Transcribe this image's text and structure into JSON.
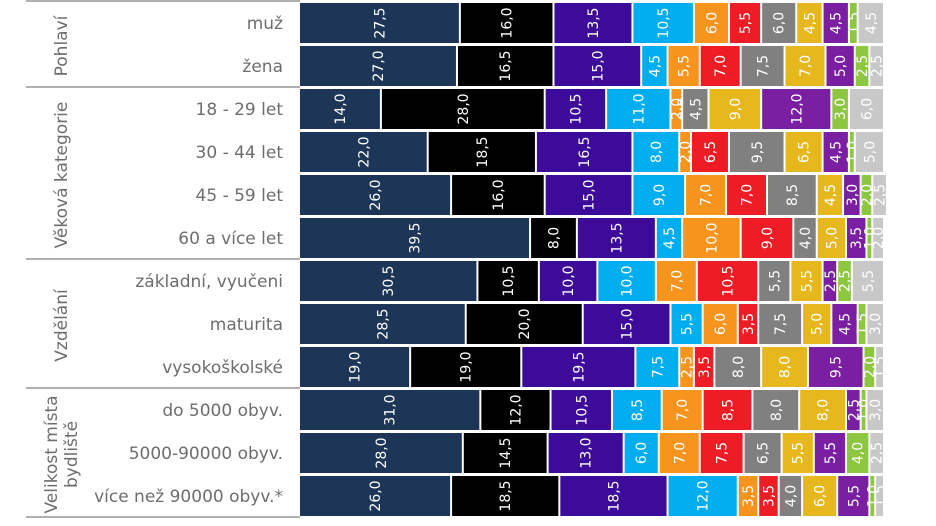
{
  "chart_data": {
    "type": "bar",
    "orientation": "horizontal",
    "stacked": true,
    "series_colors": [
      "#1d3556",
      "#000000",
      "#3d0b9a",
      "#00aeef",
      "#f7941d",
      "#ee1c25",
      "#808080",
      "#e6b81e",
      "#7a1fa2",
      "#8dc63f",
      "#c8c8c8"
    ],
    "groups": [
      {
        "label": "Pohlaví",
        "rows": [
          {
            "label": "muž",
            "values": [
              27.5,
              16.0,
              13.5,
              10.5,
              6.0,
              5.5,
              6.0,
              4.5,
              4.5,
              1.5,
              4.5
            ]
          },
          {
            "label": "žena",
            "values": [
              27.0,
              16.5,
              15.0,
              4.5,
              5.5,
              7.0,
              7.5,
              7.0,
              5.0,
              2.5,
              2.5
            ]
          }
        ]
      },
      {
        "label": "Věková kategorie",
        "rows": [
          {
            "label": "18 - 29 let",
            "values": [
              14.0,
              28.0,
              10.5,
              11.0,
              2.0,
              0.0,
              4.5,
              9.0,
              12.0,
              3.0,
              6.0
            ]
          },
          {
            "label": "30 - 44 let",
            "values": [
              22.0,
              18.5,
              16.5,
              8.0,
              2.0,
              6.5,
              9.5,
              6.5,
              4.5,
              1.0,
              5.0
            ]
          },
          {
            "label": "45 - 59 let",
            "values": [
              26.0,
              16.0,
              15.0,
              9.0,
              7.0,
              7.0,
              8.5,
              4.5,
              3.0,
              2.0,
              2.5
            ]
          },
          {
            "label": "60 a více let",
            "values": [
              39.5,
              8.0,
              13.5,
              4.5,
              10.0,
              9.0,
              4.0,
              5.0,
              3.5,
              1.0,
              2.0
            ]
          }
        ]
      },
      {
        "label": "Vzdělání",
        "rows": [
          {
            "label": "základní, vyučeni",
            "values": [
              30.5,
              10.5,
              10.0,
              10.0,
              7.0,
              10.5,
              5.5,
              5.5,
              2.5,
              2.5,
              5.5
            ]
          },
          {
            "label": "maturita",
            "values": [
              28.5,
              20.0,
              15.0,
              5.5,
              6.0,
              3.5,
              7.5,
              5.0,
              4.5,
              1.5,
              3.0
            ]
          },
          {
            "label": "vysokoškolské",
            "values": [
              19.0,
              19.0,
              19.5,
              7.5,
              2.5,
              3.5,
              8.0,
              8.0,
              9.5,
              2.0,
              1.5
            ]
          }
        ]
      },
      {
        "label": "Velikost místa bydliště",
        "label_lines": [
          "Velikost místa",
          "bydliště"
        ],
        "rows": [
          {
            "label": "do 5000 obyv.",
            "values": [
              31.0,
              12.0,
              10.5,
              8.5,
              7.0,
              8.5,
              8.0,
              8.0,
              2.5,
              1.0,
              3.0
            ]
          },
          {
            "label": "5000-90000 obyv.",
            "values": [
              28.0,
              14.5,
              13.0,
              6.0,
              7.0,
              7.5,
              6.5,
              5.5,
              5.5,
              4.0,
              2.5
            ]
          },
          {
            "label": "více než 90000 obyv.*",
            "values": [
              26.0,
              18.5,
              18.5,
              12.0,
              3.5,
              3.5,
              4.0,
              6.0,
              5.5,
              1.0,
              1.5
            ]
          }
        ]
      }
    ]
  }
}
